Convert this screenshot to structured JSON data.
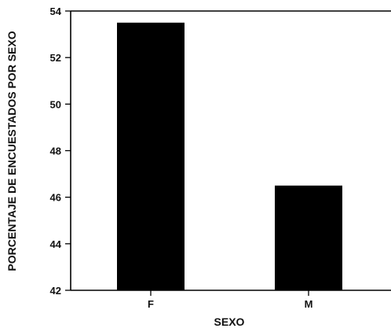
{
  "chart_data": {
    "type": "bar",
    "categories": [
      "F",
      "M"
    ],
    "values": [
      53.5,
      46.5
    ],
    "title": "",
    "xlabel": "SEXO",
    "ylabel": "PORCENTAJE DE ENCUESTADOS POR SEXO",
    "ylim": [
      42,
      54
    ],
    "yticks": [
      "42",
      "44",
      "46",
      "48",
      "50",
      "52",
      "54"
    ],
    "grid": false,
    "legend": "none",
    "colors": {
      "bar": "#000000",
      "axis": "#000000",
      "text": "#111111",
      "background": "#ffffff"
    }
  }
}
